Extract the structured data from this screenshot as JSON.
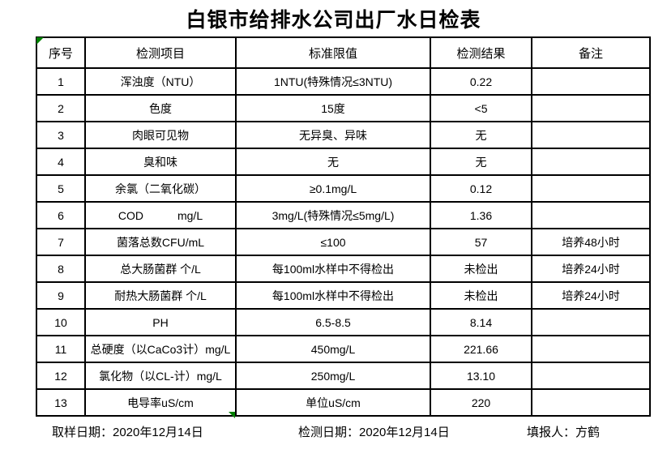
{
  "title": "白银市给排水公司出厂水日检表",
  "table": {
    "headers": [
      "序号",
      "检测项目",
      "标准限值",
      "检测结果",
      "备注"
    ],
    "rows": [
      [
        "1",
        "浑浊度（NTU）",
        "1NTU(特殊情况≤3NTU)",
        "0.22",
        ""
      ],
      [
        "2",
        "色度",
        "15度",
        "<5",
        ""
      ],
      [
        "3",
        "肉眼可见物",
        "无异臭、异味",
        "无",
        ""
      ],
      [
        "4",
        "臭和味",
        "无",
        "无",
        ""
      ],
      [
        "5",
        "余氯（二氧化碳）",
        "≥0.1mg/L",
        "0.12",
        ""
      ],
      [
        "6",
        "COD　　　mg/L",
        "3mg/L(特殊情况≤5mg/L)",
        "1.36",
        ""
      ],
      [
        "7",
        "菌落总数CFU/mL",
        "≤100",
        "57",
        "培养48小时"
      ],
      [
        "8",
        "总大肠菌群 个/L",
        "每100ml水样中不得检出",
        "未检出",
        "培养24小时"
      ],
      [
        "9",
        "耐热大肠菌群 个/L",
        "每100ml水样中不得检出",
        "未检出",
        "培养24小时"
      ],
      [
        "10",
        "PH",
        "6.5-8.5",
        "8.14",
        ""
      ],
      [
        "11",
        "总硬度（以CaCo3计）mg/L",
        "450mg/L",
        "221.66",
        ""
      ],
      [
        "12",
        "氯化物（以CL-计）mg/L",
        "250mg/L",
        "13.10",
        ""
      ],
      [
        "13",
        "电导率uS/cm",
        "单位uS/cm",
        "220",
        ""
      ]
    ]
  },
  "footer": {
    "sampling": "取样日期：2020年12月14日",
    "testing": "检测日期：2020年12月14日",
    "reporter": "填报人：方鹤"
  },
  "colors": {
    "title": "#000000",
    "border": "#000000",
    "marker_green": "#008000",
    "background": "#ffffff"
  }
}
